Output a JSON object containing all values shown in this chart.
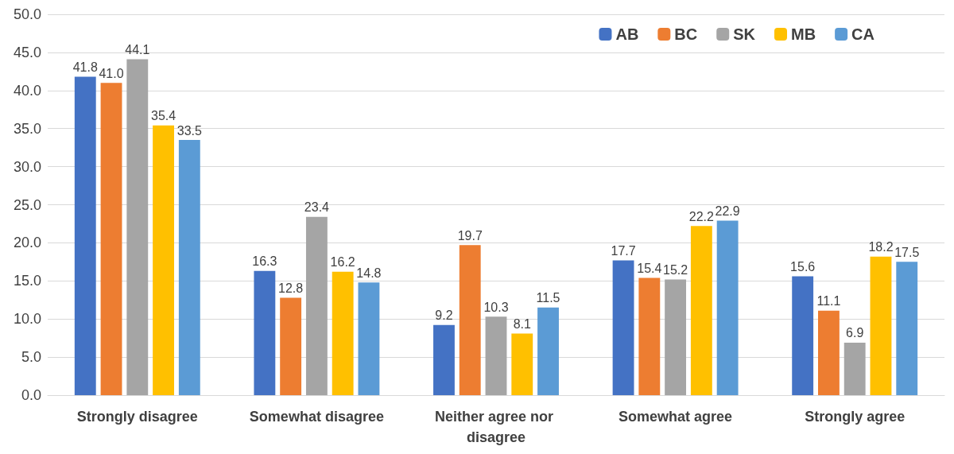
{
  "chart_data": {
    "type": "bar",
    "categories": [
      "Strongly disagree",
      "Somewhat disagree",
      "Neither agree nor disagree",
      "Somewhat agree",
      "Strongly agree"
    ],
    "series": [
      {
        "name": "AB",
        "color": "#4472c4",
        "values": [
          41.8,
          16.3,
          9.2,
          17.7,
          15.6
        ],
        "value_labels": [
          "41.8",
          "16.3",
          "9.2",
          "17.7",
          "15.6"
        ]
      },
      {
        "name": "BC",
        "color": "#ed7d31",
        "values": [
          41.0,
          12.8,
          19.7,
          15.4,
          11.1
        ],
        "value_labels": [
          "41.0",
          "12.8",
          "19.7",
          "15.4",
          "11.1"
        ]
      },
      {
        "name": "SK",
        "color": "#a5a5a5",
        "values": [
          44.1,
          23.4,
          10.3,
          15.2,
          6.9
        ],
        "value_labels": [
          "44.1",
          "23.4",
          "10.3",
          "15.2",
          "6.9"
        ]
      },
      {
        "name": "MB",
        "color": "#ffc000",
        "values": [
          35.4,
          16.2,
          8.1,
          22.2,
          18.2
        ],
        "value_labels": [
          "35.4",
          "16.2",
          "8.1",
          "22.2",
          "18.2"
        ]
      },
      {
        "name": "CA",
        "color": "#5b9bd5",
        "values": [
          33.5,
          14.8,
          11.5,
          22.9,
          17.5
        ],
        "value_labels": [
          "33.5",
          "14.8",
          "11.5",
          "22.9",
          "17.5"
        ]
      }
    ],
    "ylim": [
      0,
      50
    ],
    "yticks": [
      {
        "value": 0,
        "label": "0.0"
      },
      {
        "value": 5,
        "label": "5.0"
      },
      {
        "value": 10,
        "label": "10.0"
      },
      {
        "value": 15,
        "label": "15.0"
      },
      {
        "value": 20,
        "label": "20.0"
      },
      {
        "value": 25,
        "label": "25.0"
      },
      {
        "value": 30,
        "label": "30.0"
      },
      {
        "value": 35,
        "label": "35.0"
      },
      {
        "value": 40,
        "label": "40.0"
      },
      {
        "value": 45,
        "label": "45.0"
      },
      {
        "value": 50,
        "label": "50.0"
      }
    ],
    "grid": true,
    "legend": "top right"
  }
}
